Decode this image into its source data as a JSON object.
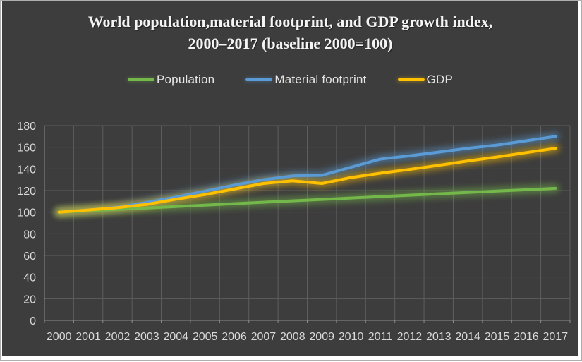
{
  "chart_data": {
    "type": "line",
    "title": "World population,material footprint, and GDP growth index, 2000–2017 (baseline 2000=100)",
    "x": [
      2000,
      2001,
      2002,
      2003,
      2004,
      2005,
      2006,
      2007,
      2008,
      2009,
      2010,
      2011,
      2012,
      2013,
      2014,
      2015,
      2016,
      2017
    ],
    "series": [
      {
        "name": "Population",
        "color": "#74b74a",
        "values": [
          100,
          101.3,
          102.6,
          103.9,
          105.2,
          106.5,
          107.9,
          109.2,
          110.5,
          111.8,
          113.1,
          114.4,
          115.7,
          117.0,
          118.2,
          119.5,
          120.7,
          122.0
        ]
      },
      {
        "name": "Material footprint",
        "color": "#5b9bd5",
        "values": [
          100,
          102.0,
          104.5,
          109.0,
          114.0,
          119.5,
          125.0,
          130.0,
          133.5,
          134.0,
          141.5,
          149.0,
          152.0,
          155.5,
          159.0,
          162.0,
          166.0,
          170.0
        ]
      },
      {
        "name": "GDP",
        "color": "#ffc000",
        "values": [
          100,
          102.0,
          104.2,
          107.2,
          112.0,
          116.3,
          121.4,
          126.5,
          129.0,
          126.5,
          132.0,
          136.0,
          139.5,
          143.3,
          147.3,
          151.0,
          155.0,
          159.0
        ]
      }
    ],
    "ylim": [
      0,
      180
    ],
    "y_ticks": [
      0,
      20,
      40,
      60,
      80,
      100,
      120,
      140,
      160,
      180
    ],
    "grid": true,
    "legend_position": "top",
    "baseline": "2000=100"
  },
  "style_colors": {
    "canvas_background": "#3d3d3d",
    "gridline": "#5e5e5e",
    "axis_line": "#8c8c8c",
    "tick_text": "#d9d9d9",
    "legend_text": "#e6e6e6",
    "title_text": "#f4f4f4",
    "frame": "#ffffff"
  }
}
